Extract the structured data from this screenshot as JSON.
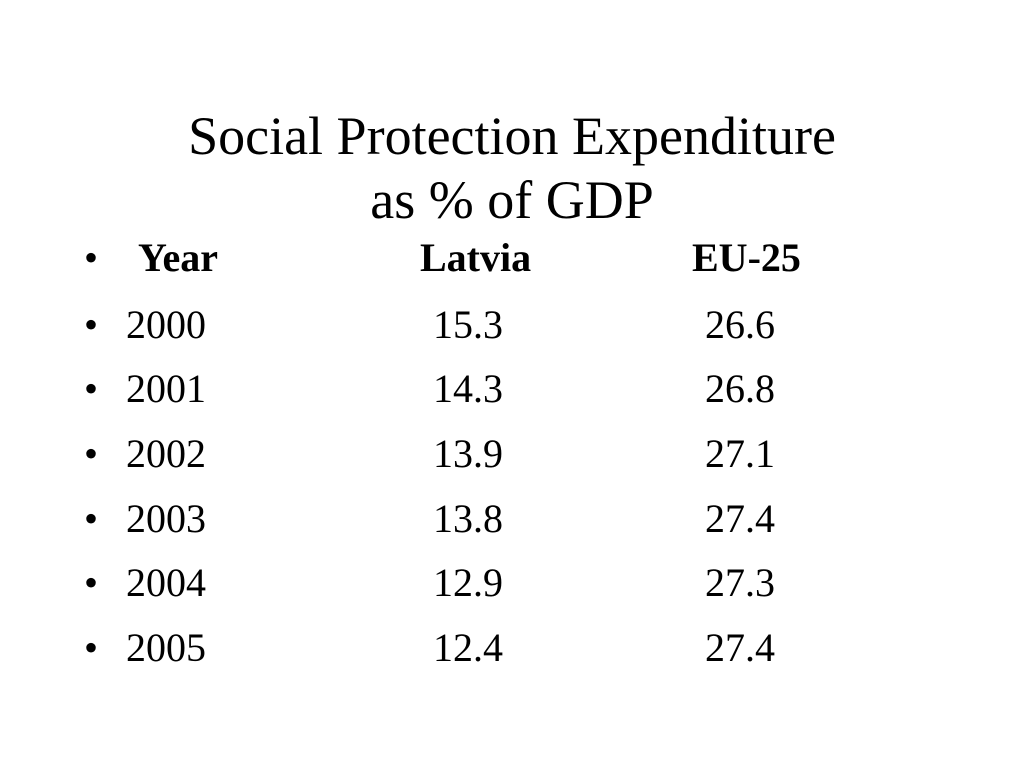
{
  "slide": {
    "title_line1": "Social Protection Expenditure",
    "title_line2": "as % of GDP",
    "bullet_glyph": "•"
  },
  "table": {
    "headers": [
      "Year",
      "Latvia",
      "EU-25"
    ],
    "rows": [
      [
        "2000",
        "15.3",
        "26.6"
      ],
      [
        "2001",
        "14.3",
        "26.8"
      ],
      [
        "2002",
        "13.9",
        "27.1"
      ],
      [
        "2003",
        "13.8",
        "27.4"
      ],
      [
        "2004",
        "12.9",
        "27.3"
      ],
      [
        "2005",
        "12.4",
        "27.4"
      ]
    ]
  }
}
